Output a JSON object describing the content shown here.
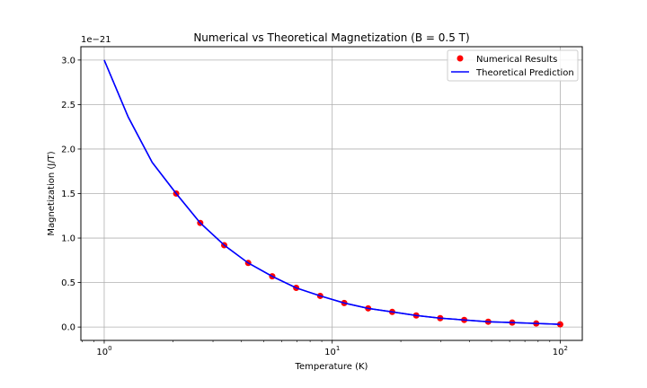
{
  "chart_data": {
    "type": "scatter",
    "title": "Numerical vs Theoretical Magnetization (B = 0.5 T)",
    "xlabel": "Temperature (K)",
    "ylabel": "Magnetization (J/T)",
    "x_scale": "log",
    "xlim": [
      0.79,
      125
    ],
    "ylim": [
      -0.15,
      3.15
    ],
    "y_offset_label": "1e−21",
    "x_ticks": [
      {
        "value": 1,
        "base": "10",
        "exp": "0"
      },
      {
        "value": 10,
        "base": "10",
        "exp": "1"
      },
      {
        "value": 100,
        "base": "10",
        "exp": "2"
      }
    ],
    "y_ticks": [
      "0.0",
      "0.5",
      "1.0",
      "1.5",
      "2.0",
      "2.5",
      "3.0"
    ],
    "grid": true,
    "legend_position": "top-right",
    "series": [
      {
        "name": "Numerical Results",
        "kind": "scatter",
        "color": "#ff0000",
        "x": [
          2.069,
          2.637,
          3.36,
          4.281,
          5.456,
          6.952,
          8.859,
          11.29,
          14.38,
          18.33,
          23.36,
          29.76,
          37.93,
          48.33,
          61.58,
          78.48,
          100.0
        ],
        "y": [
          1.5,
          1.17,
          0.92,
          0.72,
          0.57,
          0.44,
          0.35,
          0.27,
          0.21,
          0.17,
          0.13,
          0.1,
          0.08,
          0.06,
          0.05,
          0.04,
          0.03
        ]
      },
      {
        "name": "Theoretical Prediction",
        "kind": "line",
        "color": "#0000ff",
        "x": [
          1.0,
          1.274,
          1.624,
          2.069,
          2.637,
          3.36,
          4.281,
          5.456,
          6.952,
          8.859,
          11.29,
          14.38,
          18.33,
          23.36,
          29.76,
          37.93,
          48.33,
          61.58,
          78.48,
          100.0
        ],
        "y": [
          3.0,
          2.36,
          1.85,
          1.5,
          1.17,
          0.92,
          0.72,
          0.57,
          0.44,
          0.35,
          0.27,
          0.21,
          0.17,
          0.13,
          0.1,
          0.08,
          0.06,
          0.05,
          0.04,
          0.03
        ]
      }
    ]
  }
}
